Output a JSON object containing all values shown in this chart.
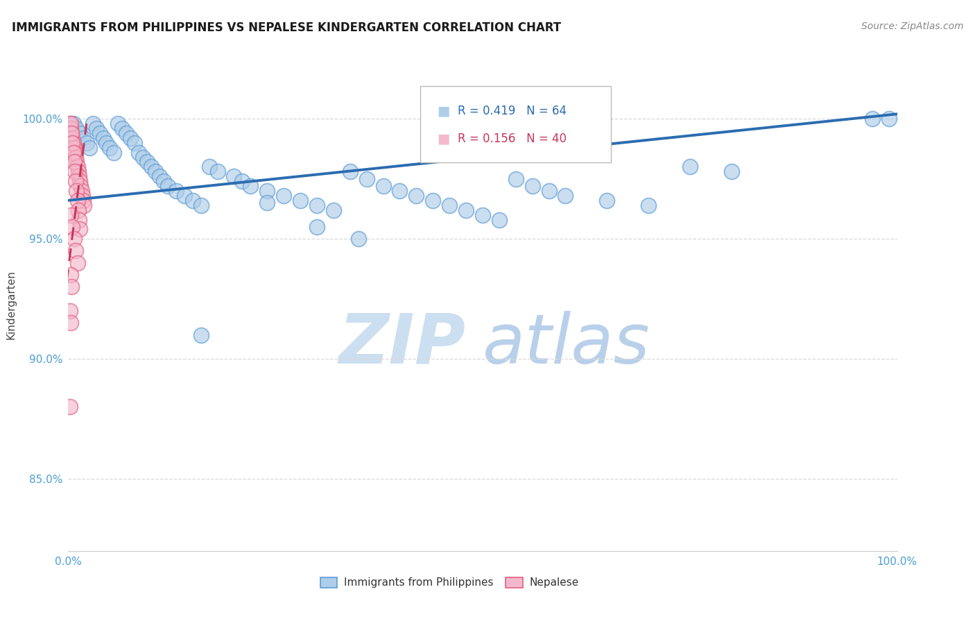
{
  "title": "IMMIGRANTS FROM PHILIPPINES VS NEPALESE KINDERGARTEN CORRELATION CHART",
  "source": "Source: ZipAtlas.com",
  "ylabel": "Kindergarten",
  "watermark_zip": "ZIP",
  "watermark_atlas": "atlas",
  "xlim": [
    0.0,
    1.0
  ],
  "ylim": [
    0.82,
    1.025
  ],
  "xticks": [
    0.0,
    0.1,
    0.2,
    0.3,
    0.4,
    0.5,
    0.6,
    0.7,
    0.8,
    0.9,
    1.0
  ],
  "xticklabels": [
    "0.0%",
    "",
    "",
    "",
    "",
    "",
    "",
    "",
    "",
    "",
    "100.0%"
  ],
  "yticks": [
    0.85,
    0.9,
    0.95,
    1.0
  ],
  "yticklabels": [
    "85.0%",
    "90.0%",
    "95.0%",
    "100.0%"
  ],
  "legend_r_blue": "0.419",
  "legend_n_blue": "64",
  "legend_r_pink": "0.156",
  "legend_n_pink": "40",
  "blue_face": "#aecde8",
  "blue_edge": "#5b9bd5",
  "pink_face": "#f4b8cc",
  "pink_edge": "#e0607e",
  "blue_line": "#2b6cb0",
  "pink_line": "#c9365a",
  "blue_scatter_x": [
    0.006,
    0.01,
    0.014,
    0.018,
    0.022,
    0.026,
    0.03,
    0.034,
    0.038,
    0.042,
    0.046,
    0.05,
    0.055,
    0.06,
    0.065,
    0.07,
    0.075,
    0.08,
    0.085,
    0.09,
    0.095,
    0.1,
    0.105,
    0.11,
    0.115,
    0.12,
    0.13,
    0.14,
    0.15,
    0.16,
    0.17,
    0.18,
    0.2,
    0.21,
    0.22,
    0.24,
    0.26,
    0.28,
    0.3,
    0.32,
    0.34,
    0.36,
    0.38,
    0.4,
    0.42,
    0.44,
    0.46,
    0.48,
    0.5,
    0.52,
    0.54,
    0.56,
    0.58,
    0.6,
    0.65,
    0.7,
    0.75,
    0.8,
    0.16,
    0.24,
    0.3,
    0.35,
    0.97,
    0.99
  ],
  "blue_scatter_y": [
    0.998,
    0.996,
    0.994,
    0.992,
    0.99,
    0.988,
    0.998,
    0.996,
    0.994,
    0.992,
    0.99,
    0.988,
    0.986,
    0.998,
    0.996,
    0.994,
    0.992,
    0.99,
    0.986,
    0.984,
    0.982,
    0.98,
    0.978,
    0.976,
    0.974,
    0.972,
    0.97,
    0.968,
    0.966,
    0.964,
    0.98,
    0.978,
    0.976,
    0.974,
    0.972,
    0.97,
    0.968,
    0.966,
    0.964,
    0.962,
    0.978,
    0.975,
    0.972,
    0.97,
    0.968,
    0.966,
    0.964,
    0.962,
    0.96,
    0.958,
    0.975,
    0.972,
    0.97,
    0.968,
    0.966,
    0.964,
    0.98,
    0.978,
    0.91,
    0.965,
    0.955,
    0.95,
    1.0,
    1.0
  ],
  "pink_scatter_x": [
    0.002,
    0.003,
    0.004,
    0.005,
    0.006,
    0.007,
    0.008,
    0.009,
    0.01,
    0.011,
    0.012,
    0.013,
    0.014,
    0.015,
    0.016,
    0.017,
    0.018,
    0.019,
    0.003,
    0.004,
    0.005,
    0.006,
    0.007,
    0.008,
    0.009,
    0.01,
    0.011,
    0.012,
    0.013,
    0.014,
    0.003,
    0.005,
    0.007,
    0.009,
    0.011,
    0.003,
    0.004,
    0.002,
    0.003,
    0.002
  ],
  "pink_scatter_y": [
    0.998,
    0.996,
    0.994,
    0.992,
    0.99,
    0.988,
    0.986,
    0.984,
    0.982,
    0.98,
    0.978,
    0.976,
    0.974,
    0.972,
    0.97,
    0.968,
    0.966,
    0.964,
    0.998,
    0.994,
    0.99,
    0.986,
    0.982,
    0.978,
    0.974,
    0.97,
    0.966,
    0.962,
    0.958,
    0.954,
    0.96,
    0.955,
    0.95,
    0.945,
    0.94,
    0.935,
    0.93,
    0.92,
    0.915,
    0.88
  ],
  "blue_trend_x": [
    0.0,
    1.0
  ],
  "blue_trend_y": [
    0.966,
    1.002
  ],
  "pink_trend_x": [
    -0.002,
    0.022
  ],
  "pink_trend_y": [
    0.932,
    0.998
  ],
  "grid_color": "#d8d8d8",
  "background_color": "#ffffff",
  "title_fontsize": 12,
  "source_fontsize": 10,
  "watermark_color_zip": "#ccdff0",
  "watermark_color_atlas": "#b8d0ea",
  "tick_color": "#4a9fd4",
  "ylabel_color": "#444444"
}
